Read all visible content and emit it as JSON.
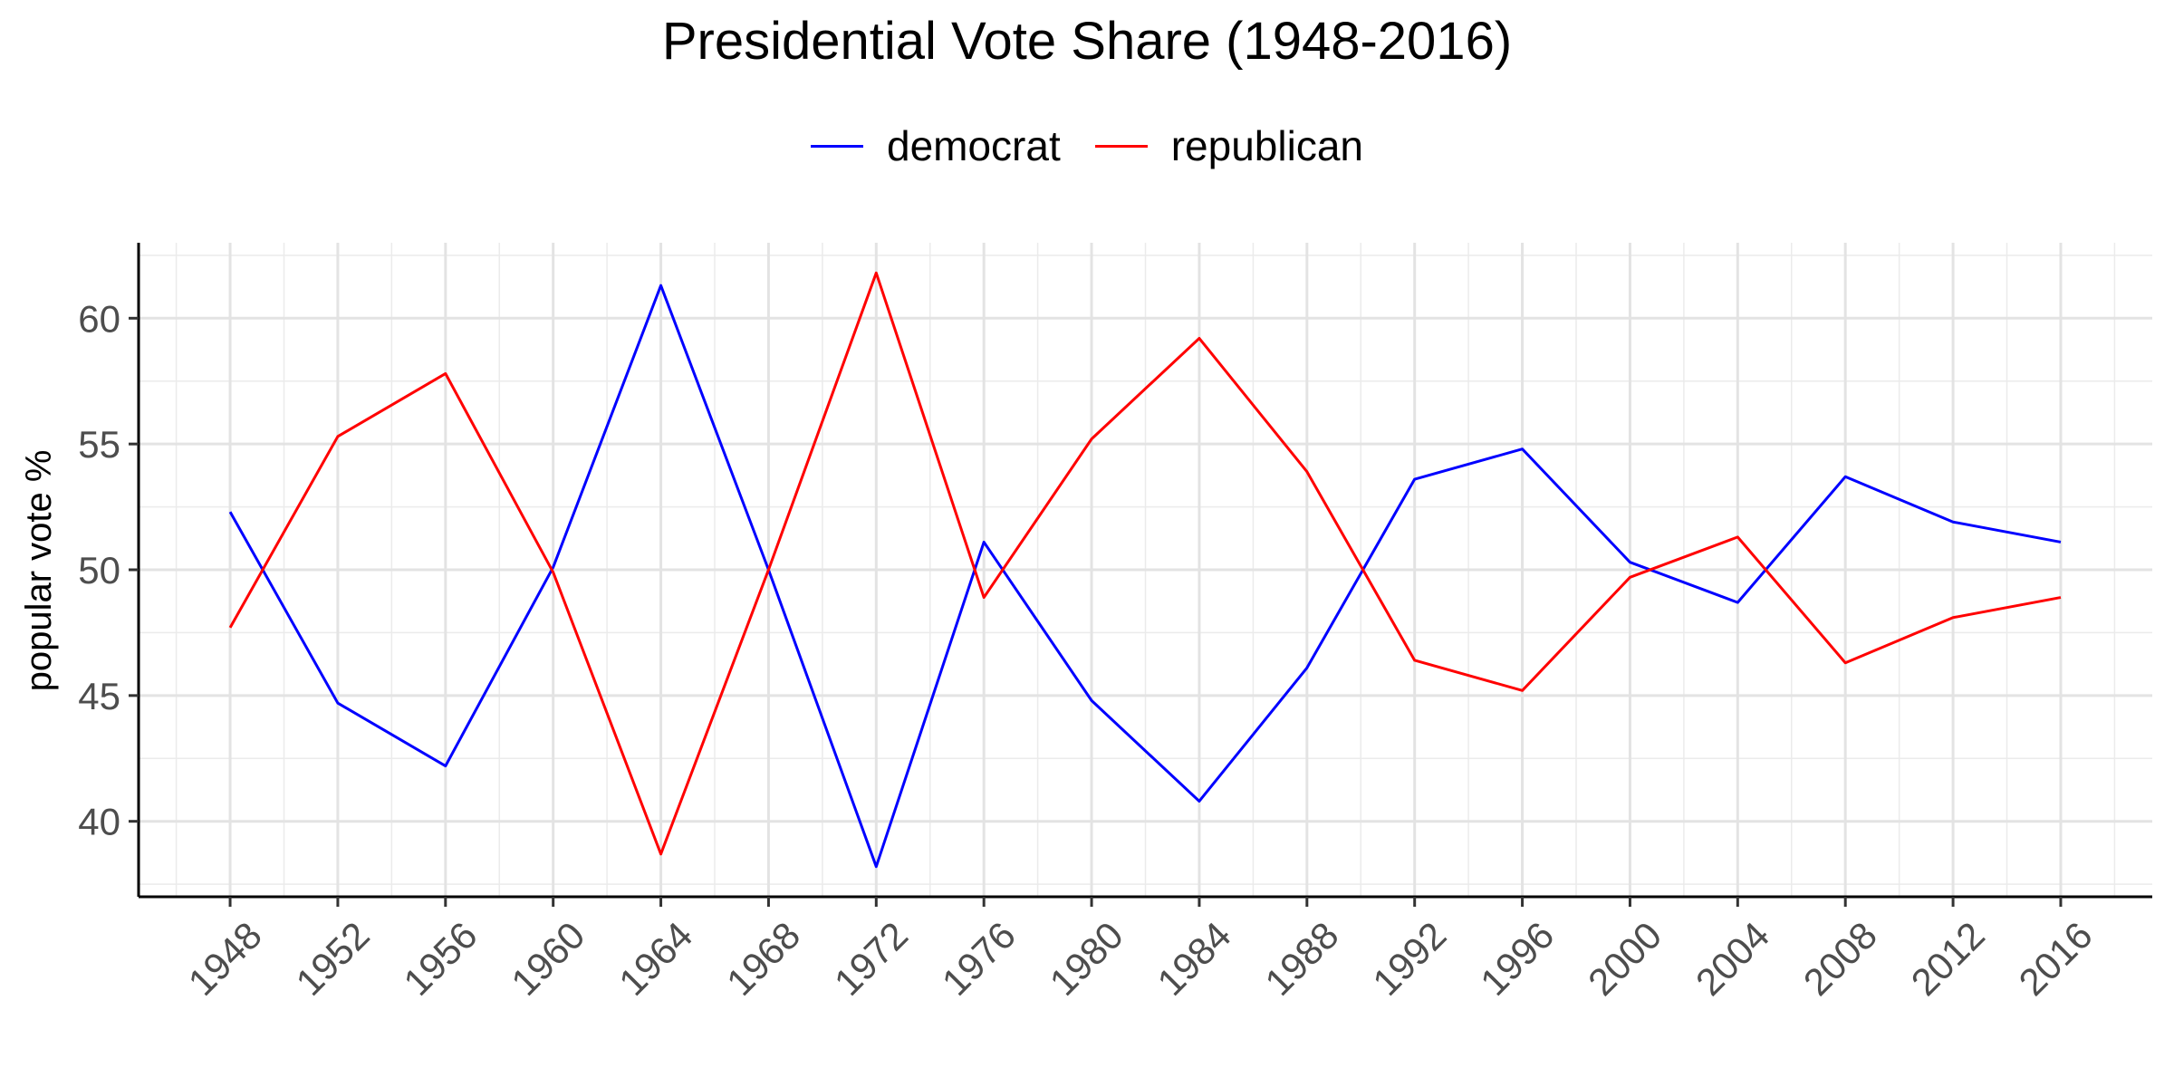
{
  "chart_data": {
    "type": "line",
    "title": "Presidential Vote Share (1948-2016)",
    "xlabel": "",
    "ylabel": "popular vote %",
    "x": [
      1948,
      1952,
      1956,
      1960,
      1964,
      1968,
      1972,
      1976,
      1980,
      1984,
      1988,
      1992,
      1996,
      2000,
      2004,
      2008,
      2012,
      2016
    ],
    "x_tick_labels": [
      "1948",
      "1952",
      "1956",
      "1960",
      "1964",
      "1968",
      "1972",
      "1976",
      "1980",
      "1984",
      "1988",
      "1992",
      "1996",
      "2000",
      "2004",
      "2008",
      "2012",
      "2016"
    ],
    "y_ticks": [
      40,
      45,
      50,
      55,
      60
    ],
    "xlim": [
      1944.6,
      2019.4
    ],
    "ylim": [
      37.0,
      63.0
    ],
    "grid": true,
    "legend_position": "top",
    "series": [
      {
        "name": "democrat",
        "color": "#0000ff",
        "values": [
          52.3,
          44.7,
          42.2,
          50.1,
          61.3,
          50.0,
          38.2,
          51.1,
          44.8,
          40.8,
          46.1,
          53.6,
          54.8,
          50.3,
          48.7,
          53.7,
          51.9,
          51.1
        ]
      },
      {
        "name": "republican",
        "color": "#ff0000",
        "values": [
          47.7,
          55.3,
          57.8,
          49.9,
          38.7,
          50.0,
          61.8,
          48.9,
          55.2,
          59.2,
          53.9,
          46.4,
          45.2,
          49.7,
          51.3,
          46.3,
          48.1,
          48.9
        ]
      }
    ]
  }
}
